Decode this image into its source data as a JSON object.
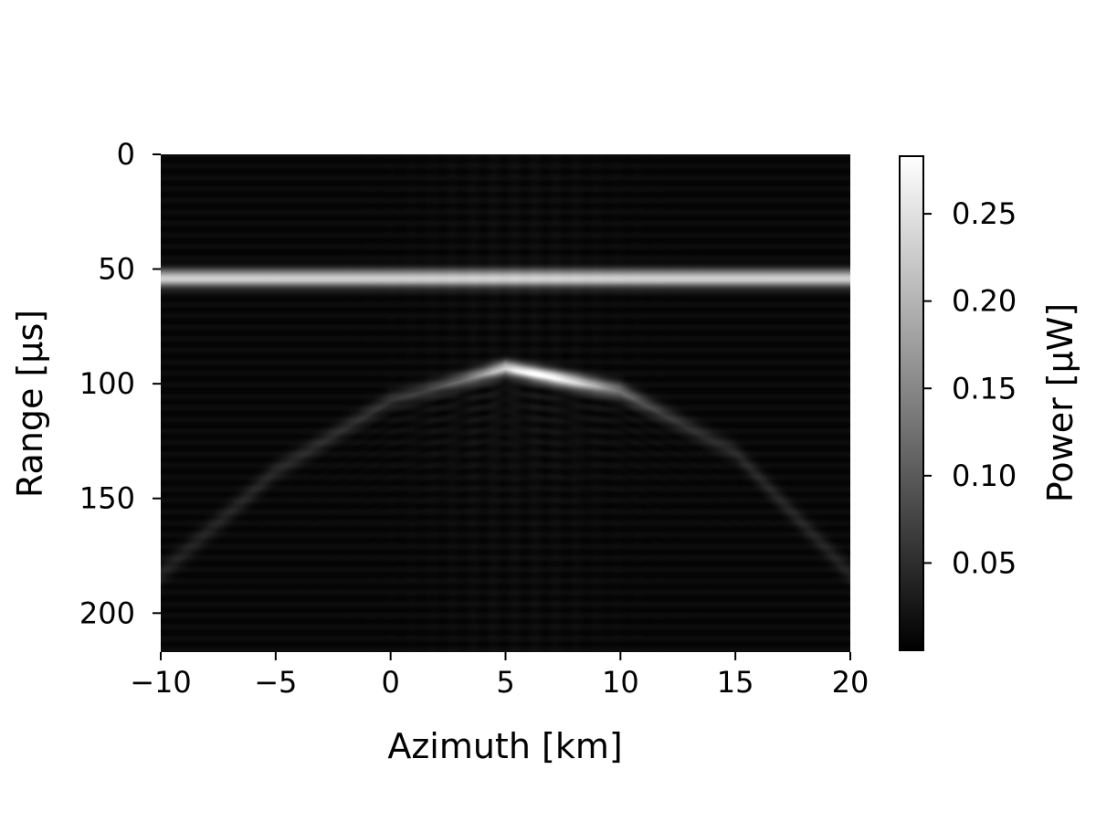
{
  "chart_data": {
    "type": "heatmap",
    "title": "",
    "xlabel": "Azimuth [km]",
    "ylabel": "Range [µs]",
    "xlim": [
      -10,
      20
    ],
    "ylim": [
      217,
      0
    ],
    "y_inverted": true,
    "x_ticks": [
      -10,
      -5,
      0,
      5,
      10,
      15,
      20
    ],
    "x_tick_labels": [
      "−10",
      "−5",
      "0",
      "5",
      "10",
      "15",
      "20"
    ],
    "y_ticks": [
      0,
      50,
      100,
      150,
      200
    ],
    "y_tick_labels": [
      "0",
      "50",
      "100",
      "150",
      "200"
    ],
    "colormap": "gray",
    "colorbar": {
      "label": "Power [µW]",
      "range": [
        0.0,
        0.283
      ],
      "ticks": [
        0.05,
        0.1,
        0.15,
        0.2,
        0.25
      ],
      "tick_labels": [
        "0.05",
        "0.10",
        "0.15",
        "0.20",
        "0.25"
      ]
    },
    "features": [
      {
        "kind": "horizontal_band",
        "range_us": 54,
        "azimuth_from_km": -10,
        "azimuth_to_km": 20,
        "power_uW": 0.22
      },
      {
        "kind": "hyperbola",
        "apex_azimuth_km": 5.5,
        "apex_range_us": 93,
        "power_at_apex_uW": 0.28,
        "samples": [
          [
            -10,
            183
          ],
          [
            -5,
            138
          ],
          [
            0,
            107
          ],
          [
            5,
            93
          ],
          [
            10,
            103
          ],
          [
            15,
            130
          ],
          [
            20,
            183
          ]
        ]
      }
    ]
  }
}
